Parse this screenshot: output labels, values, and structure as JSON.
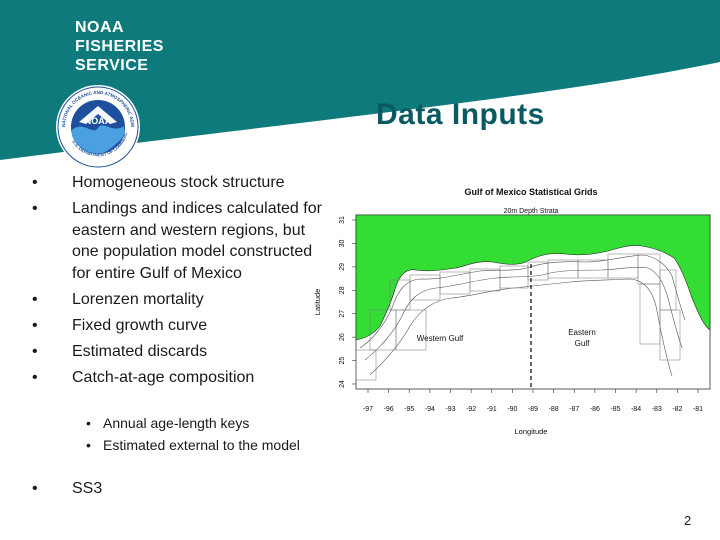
{
  "header": {
    "brand_lines": [
      "NOAA",
      "FISHERIES",
      "SERVICE"
    ],
    "colors": {
      "teal": "#0e7a7b",
      "title": "#0b5a63"
    }
  },
  "title": "Data Inputs",
  "bullets": [
    "Homogeneous stock structure",
    "Landings and indices calculated for eastern and western regions, but one population model constructed for entire Gulf of Mexico",
    "Lorenzen mortality",
    "Fixed growth curve",
    "Estimated discards",
    "Catch-at-age composition"
  ],
  "sub_bullets": [
    "Annual age-length keys",
    "Estimated external to the model"
  ],
  "last_bullet": "SS3",
  "bullet_char": "•",
  "page_number": "2",
  "map": {
    "title": "Gulf of Mexico Statistical Grids",
    "subtitle": "20m Depth Strata",
    "ylabel": "Latitude",
    "xlabel": "Longitude",
    "y_ticks": [
      "31",
      "30",
      "29",
      "28",
      "27",
      "26",
      "25",
      "24"
    ],
    "x_ticks": [
      "-97",
      "-96",
      "-95",
      "-94",
      "-93",
      "-92",
      "-91",
      "-90",
      "-89",
      "-88",
      "-87",
      "-86",
      "-85",
      "-84",
      "-83",
      "-82",
      "-81"
    ],
    "western_label": "Western Gulf",
    "eastern_label_1": "Eastern",
    "eastern_label_2": "Gulf",
    "land_color": "#33dd33"
  }
}
